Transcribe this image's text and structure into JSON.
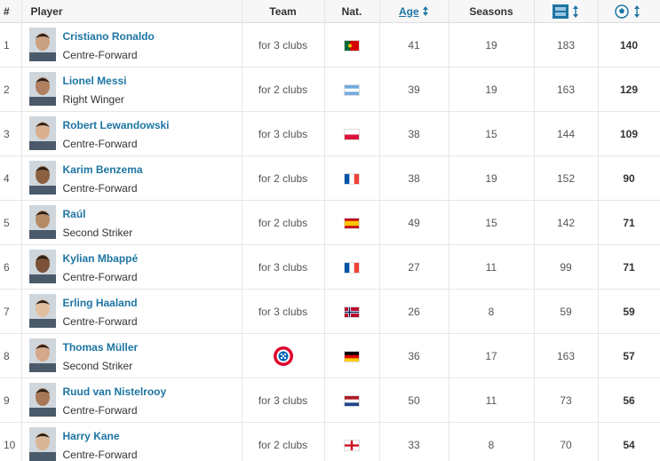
{
  "table": {
    "columns": [
      "#",
      "Player",
      "Team",
      "Nat.",
      "Age",
      "Seasons"
    ],
    "rows": [
      {
        "rank": "1",
        "name": "Cristiano Ronaldo",
        "position": "Centre-Forward",
        "team": "for 3 clubs",
        "age": 41,
        "seasons": 19,
        "apps": 183,
        "goals": 140
      },
      {
        "rank": "2",
        "name": "Lionel Messi",
        "position": "Right Winger",
        "team": "for 2 clubs",
        "age": 39,
        "seasons": 19,
        "apps": 163,
        "goals": 129
      },
      {
        "rank": "3",
        "name": "Robert Lewandowski",
        "position": "Centre-Forward",
        "team": "for 3 clubs",
        "age": 38,
        "seasons": 15,
        "apps": 144,
        "goals": 109
      },
      {
        "rank": "4",
        "name": "Karim Benzema",
        "position": "Centre-Forward",
        "team": "for 2 clubs",
        "age": 38,
        "seasons": 19,
        "apps": 152,
        "goals": 90
      },
      {
        "rank": "5",
        "name": "Raúl",
        "position": "Second Striker",
        "team": "for 2 clubs",
        "age": 49,
        "seasons": 15,
        "apps": 142,
        "goals": 71
      },
      {
        "rank": "6",
        "name": "Kylian Mbappé",
        "position": "Centre-Forward",
        "team": "for 3 clubs",
        "age": 27,
        "seasons": 11,
        "apps": 99,
        "goals": 71
      },
      {
        "rank": "7",
        "name": "Erling Haaland",
        "position": "Centre-Forward",
        "team": "for 3 clubs",
        "age": 26,
        "seasons": 8,
        "apps": 59,
        "goals": 59
      },
      {
        "rank": "8",
        "name": "Thomas Müller",
        "position": "Second Striker",
        "age": 36,
        "seasons": 17,
        "apps": 163,
        "goals": 57
      },
      {
        "rank": "9",
        "name": "Ruud van Nistelrooy",
        "position": "Centre-Forward",
        "team": "for 3 clubs",
        "age": 50,
        "seasons": 11,
        "apps": 73,
        "goals": 56
      },
      {
        "rank": "10",
        "name": "Harry Kane",
        "position": "Centre-Forward",
        "team": "for 2 clubs",
        "age": 33,
        "seasons": 8,
        "apps": 70,
        "goals": 54
      }
    ]
  }
}
